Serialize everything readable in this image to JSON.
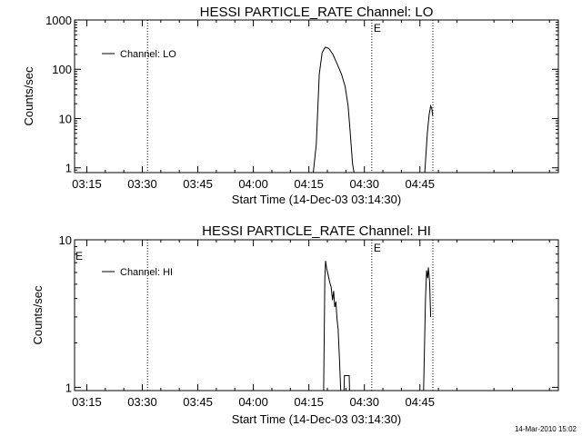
{
  "chart_data": [
    {
      "type": "line",
      "title": "HESSI PARTICLE_RATE Channel: LO",
      "xlabel": "Start Time (14-Dec-03 03:14:30)",
      "ylabel": "Counts/sec",
      "y_scale": "log",
      "ylim": [
        0.8,
        1000
      ],
      "y_ticks": [
        1,
        10,
        100,
        1000
      ],
      "y_tick_labels": [
        "1",
        "10",
        "100",
        "1000"
      ],
      "x_range_minutes": [
        -3.3,
        127.4
      ],
      "x_ticks": [
        0,
        15,
        30,
        45,
        60,
        75,
        90
      ],
      "x_tick_labels": [
        "03:15",
        "03:30",
        "03:45",
        "04:00",
        "04:15",
        "04:30",
        "04:45"
      ],
      "legend": {
        "entries": [
          "Channel: LO"
        ],
        "placement": "top-left"
      },
      "markers": [
        {
          "x": 16.4,
          "label": ""
        },
        {
          "x": 77.0,
          "label": "E"
        },
        {
          "x": 93.5,
          "label": ""
        }
      ],
      "grid": false,
      "series": [
        {
          "name": "Channel: LO",
          "segments": [
            [
              [
                61.2,
                0.8
              ],
              [
                62.0,
                3
              ],
              [
                62.8,
                80
              ],
              [
                63.6,
                220
              ],
              [
                64.4,
                280
              ],
              [
                65.4,
                265
              ],
              [
                66.5,
                200
              ],
              [
                67.6,
                130
              ],
              [
                68.8,
                80
              ],
              [
                69.8,
                45
              ],
              [
                70.6,
                18
              ],
              [
                71.2,
                5
              ],
              [
                71.8,
                1.2
              ],
              [
                72.2,
                0.8
              ]
            ],
            [
              [
                91.3,
                0.8
              ],
              [
                92.0,
                5
              ],
              [
                92.5,
                12
              ],
              [
                92.9,
                18
              ],
              [
                93.2,
                16
              ],
              [
                93.5,
                11
              ]
            ]
          ]
        }
      ]
    },
    {
      "type": "line",
      "title": "HESSI PARTICLE_RATE Channel: HI",
      "xlabel": "Start Time (14-Dec-03 03:14:30)",
      "ylabel": "Counts/sec",
      "y_scale": "log",
      "ylim": [
        0.95,
        10
      ],
      "y_ticks": [
        1,
        10
      ],
      "y_tick_labels": [
        "1",
        "10"
      ],
      "x_range_minutes": [
        -3.3,
        127.4
      ],
      "x_ticks": [
        0,
        15,
        30,
        45,
        60,
        75,
        90
      ],
      "x_tick_labels": [
        "03:15",
        "03:30",
        "03:45",
        "04:00",
        "04:15",
        "04:30",
        "04:45"
      ],
      "legend": {
        "entries": [
          "Channel: HI"
        ],
        "placement": "top-left"
      },
      "markers": [
        {
          "x": 16.4,
          "label": ""
        },
        {
          "x": 77.0,
          "label": "E"
        },
        {
          "x": 93.5,
          "label": ""
        }
      ],
      "corner_labels": [
        "E"
      ],
      "grid": false,
      "series": [
        {
          "name": "Channel: HI",
          "segments": [
            [
              [
                64.0,
                0.95
              ],
              [
                64.3,
                5.5
              ],
              [
                64.5,
                7.2
              ],
              [
                64.8,
                6.4
              ],
              [
                65.2,
                5.8
              ],
              [
                65.6,
                5.2
              ],
              [
                66.0,
                4.8
              ],
              [
                66.4,
                3.9
              ],
              [
                66.7,
                4.5
              ],
              [
                67.0,
                3.5
              ],
              [
                67.3,
                3.8
              ],
              [
                67.6,
                2.9
              ],
              [
                67.9,
                2.5
              ],
              [
                68.3,
                1.5
              ],
              [
                68.6,
                0.95
              ]
            ],
            [
              [
                69.5,
                0.95
              ],
              [
                69.6,
                1.2
              ],
              [
                70.9,
                1.2
              ],
              [
                71.0,
                0.95
              ]
            ],
            [
              [
                91.0,
                0.95
              ],
              [
                91.5,
                4
              ],
              [
                91.8,
                6.2
              ],
              [
                92.1,
                5.5
              ],
              [
                92.3,
                6.5
              ],
              [
                92.6,
                5.2
              ],
              [
                92.9,
                3.0
              ]
            ]
          ]
        }
      ]
    }
  ],
  "timestamp": "14-Mar-2010 15:02"
}
